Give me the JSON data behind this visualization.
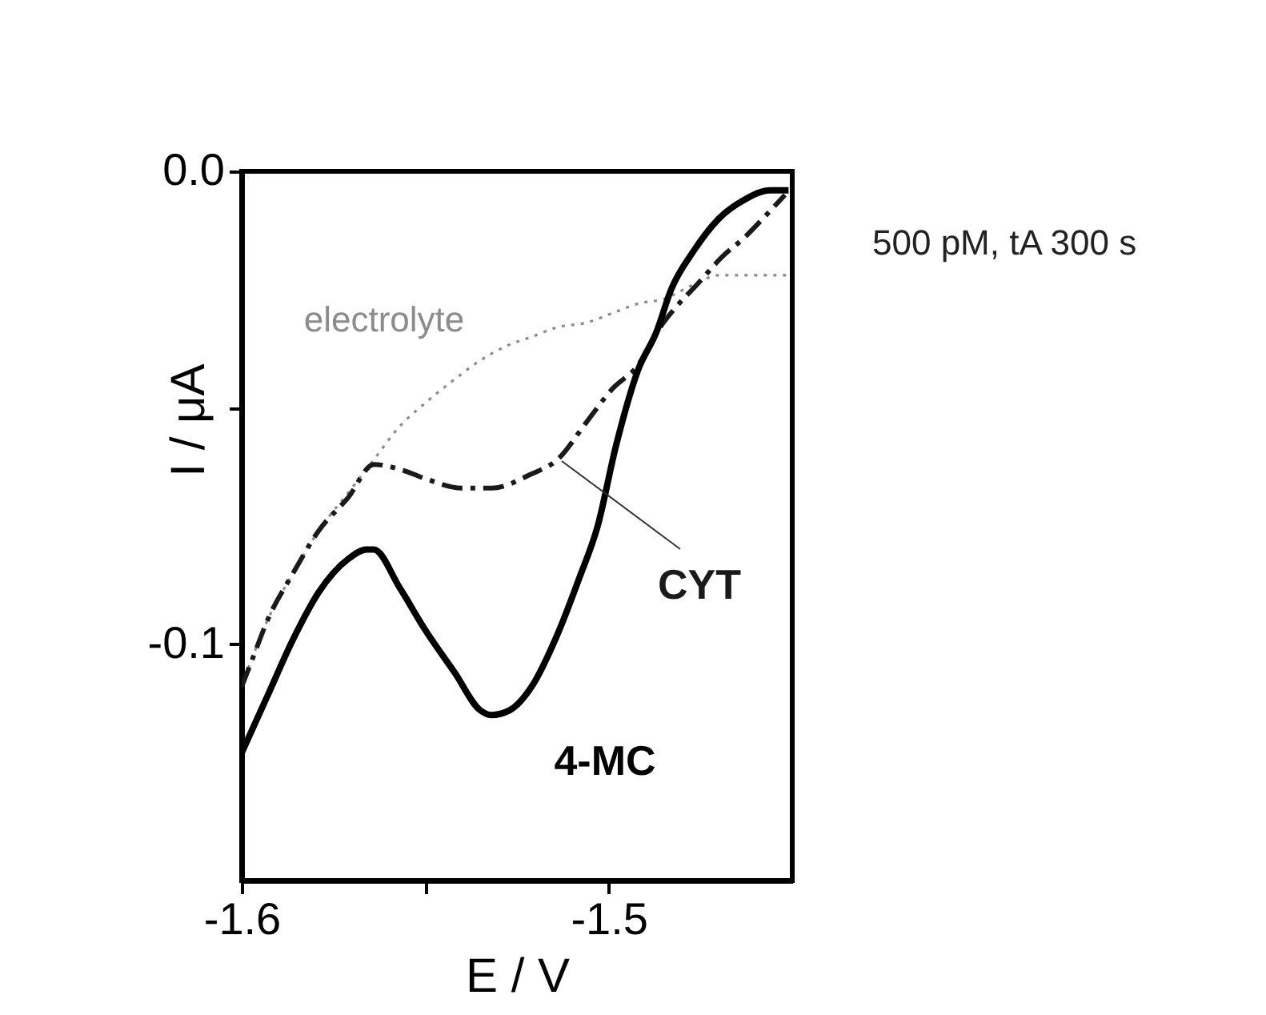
{
  "chart_data": {
    "type": "line",
    "xlabel": "E / V",
    "ylabel": "I / μA",
    "annotations": [
      "500 pM, tA 300 s"
    ],
    "xlim": [
      -1.6,
      -1.45
    ],
    "ylim": [
      -0.15,
      0
    ],
    "xticks": [
      -1.6,
      {
        "value": -1.55,
        "label": null
      },
      -1.5
    ],
    "yticks": [
      {
        "value": 0,
        "label": "0.0"
      },
      {
        "value": -0.05,
        "label": null
      },
      -0.1
    ],
    "series": [
      {
        "name": "electrolyte",
        "color": "#8c8c8c",
        "line_style": "dotted",
        "x": [
          -1.6,
          -1.593,
          -1.586,
          -1.579,
          -1.571,
          -1.564,
          -1.557,
          -1.55,
          -1.542,
          -1.535,
          -1.528,
          -1.521,
          -1.514,
          -1.506,
          -1.499,
          -1.492,
          -1.485,
          -1.477,
          -1.47,
          -1.463,
          -1.451
        ],
        "values": [
          -0.109,
          -0.095,
          -0.085,
          -0.076,
          -0.068,
          -0.061,
          -0.054,
          -0.049,
          -0.044,
          -0.04,
          -0.037,
          -0.035,
          -0.033,
          -0.032,
          -0.03,
          -0.028,
          -0.027,
          -0.024,
          -0.022,
          -0.022,
          -0.022
        ]
      },
      {
        "name": "CYT",
        "color": "#1a1a1a",
        "line_style": "dashdot",
        "x": [
          -1.6,
          -1.597,
          -1.593,
          -1.586,
          -1.579,
          -1.571,
          -1.564,
          -1.557,
          -1.55,
          -1.54,
          -1.532,
          -1.521,
          -1.514,
          -1.506,
          -1.499,
          -1.492,
          -1.486,
          -1.482,
          -1.476,
          -1.469,
          -1.463,
          -1.458,
          -1.452
        ],
        "values": [
          -0.109,
          -0.103,
          -0.095,
          -0.085,
          -0.076,
          -0.069,
          -0.062,
          -0.063,
          -0.065,
          -0.067,
          -0.067,
          -0.064,
          -0.061,
          -0.053,
          -0.046,
          -0.041,
          -0.033,
          -0.029,
          -0.024,
          -0.018,
          -0.014,
          -0.01,
          -0.005
        ]
      },
      {
        "name": "4-MC",
        "color": "#000000",
        "line_style": "solid",
        "x": [
          -1.6,
          -1.593,
          -1.586,
          -1.579,
          -1.571,
          -1.566,
          -1.564,
          -1.557,
          -1.55,
          -1.542,
          -1.535,
          -1.532,
          -1.527,
          -1.521,
          -1.514,
          -1.508,
          -1.503,
          -1.498,
          -1.492,
          -1.487,
          -1.483,
          -1.477,
          -1.47,
          -1.463,
          -1.456,
          -1.451
        ],
        "values": [
          -0.123,
          -0.111,
          -0.099,
          -0.089,
          -0.082,
          -0.08,
          -0.08,
          -0.088,
          -0.097,
          -0.106,
          -0.114,
          -0.115,
          -0.114,
          -0.109,
          -0.098,
          -0.086,
          -0.075,
          -0.058,
          -0.042,
          -0.034,
          -0.025,
          -0.017,
          -0.01,
          -0.006,
          -0.004,
          -0.004
        ]
      }
    ]
  }
}
